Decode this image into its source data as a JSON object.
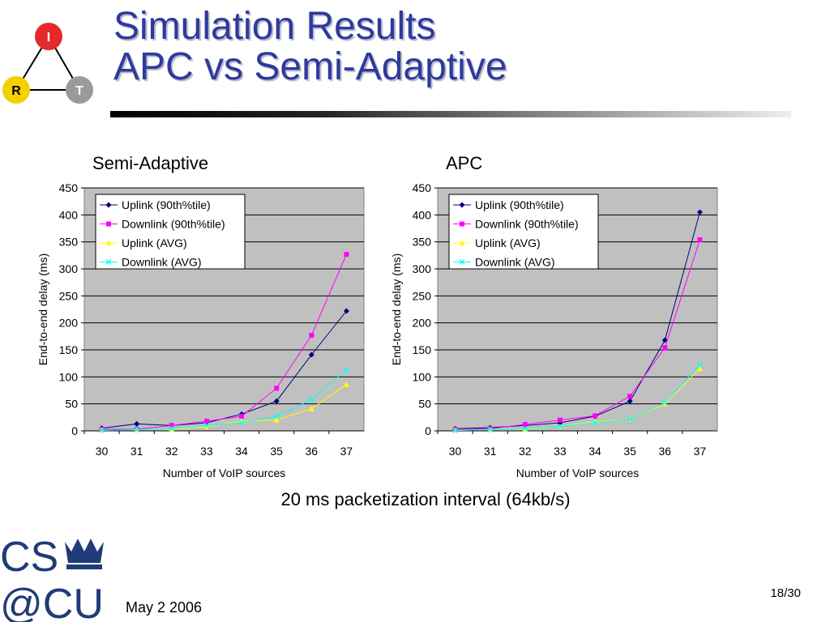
{
  "slide": {
    "title_line1": "Simulation Results",
    "title_line2": "APC vs Semi-Adaptive",
    "caption": "20 ms packetization interval (64kb/s)",
    "date": "May 2 2006",
    "page": "18/30"
  },
  "logo": {
    "nodes": [
      "I",
      "R",
      "T"
    ],
    "colors": [
      "#e32b2b",
      "#f5d000",
      "#9a9a9a"
    ]
  },
  "cu_logo": {
    "line1": "CS",
    "line2": "@CU",
    "color": "#1f3c78"
  },
  "colors": {
    "title": "#2e3a9e",
    "plot_bg": "#c0c0c0",
    "uplink_90": "#000080",
    "downlink_90": "#ff00ff",
    "uplink_avg": "#ffff00",
    "downlink_avg": "#00ffff"
  },
  "chart_data": [
    {
      "type": "line",
      "title": "Semi-Adaptive",
      "xlabel": "Number of VoIP sources",
      "ylabel": "End-to-end delay (ms)",
      "categories": [
        "30",
        "31",
        "32",
        "33",
        "34",
        "35",
        "36",
        "37"
      ],
      "ylim": [
        0,
        450
      ],
      "yticks": [
        "0",
        "50",
        "100",
        "150",
        "200",
        "250",
        "300",
        "350",
        "400",
        "450"
      ],
      "grid": true,
      "legend": "top-left",
      "series": [
        {
          "name": "Uplink (90th%tile)",
          "values": [
            5,
            13,
            10,
            15,
            31,
            55,
            141,
            222
          ]
        },
        {
          "name": "Downlink (90th%tile)",
          "values": [
            3,
            3,
            10,
            18,
            27,
            79,
            177,
            327
          ]
        },
        {
          "name": "Uplink (AVG)",
          "values": [
            1,
            2,
            3,
            8,
            18,
            20,
            41,
            86
          ]
        },
        {
          "name": "Downlink (AVG)",
          "values": [
            1,
            2,
            4,
            10,
            15,
            27,
            58,
            113
          ]
        }
      ]
    },
    {
      "type": "line",
      "title": "APC",
      "xlabel": "Number of VoIP sources",
      "ylabel": "End-to-end delay (ms)",
      "categories": [
        "30",
        "31",
        "32",
        "33",
        "34",
        "35",
        "36",
        "37"
      ],
      "ylim": [
        0,
        450
      ],
      "yticks": [
        "0",
        "50",
        "100",
        "150",
        "200",
        "250",
        "300",
        "350",
        "400",
        "450"
      ],
      "grid": true,
      "legend": "top-left",
      "series": [
        {
          "name": "Uplink (90th%tile)",
          "values": [
            4,
            6,
            10,
            15,
            27,
            55,
            168,
            405
          ]
        },
        {
          "name": "Downlink (90th%tile)",
          "values": [
            3,
            4,
            12,
            20,
            28,
            64,
            154,
            354
          ]
        },
        {
          "name": "Uplink (AVG)",
          "values": [
            1,
            2,
            3,
            8,
            17,
            21,
            50,
            115
          ]
        },
        {
          "name": "Downlink (AVG)",
          "values": [
            1,
            2,
            4,
            8,
            15,
            21,
            52,
            123
          ]
        }
      ]
    }
  ]
}
